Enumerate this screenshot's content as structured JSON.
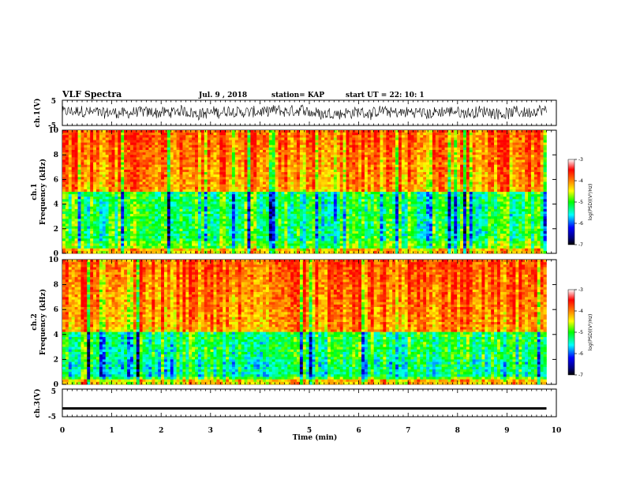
{
  "header": {
    "title": "VLF Spectra",
    "date": "Jul. 9 , 2018",
    "station": "station= KAP",
    "start": "start UT = 22: 10: 1"
  },
  "chart_data": [
    {
      "type": "line",
      "name": "ch1-waveform",
      "ylabel": "ch.1(V)",
      "ylim": [
        -5,
        5
      ],
      "yticks": [
        "5",
        "-5"
      ],
      "xlim": [
        0,
        10
      ],
      "note_series": "dense noisy voltage waveform roughly between -3 V and +4 V over 0–9.8 min"
    },
    {
      "type": "heatmap",
      "name": "ch1-spectrogram",
      "ylabel": "ch.1",
      "ylabel2": "Frequency (kHz)",
      "ylim": [
        0,
        10
      ],
      "yticks": [
        "0",
        "2",
        "4",
        "6",
        "8",
        "10"
      ],
      "xlim": [
        0,
        9.8
      ],
      "zlabel": "log(PSD)(V²/Hz)",
      "zlim": [
        -7,
        -3
      ],
      "zticks": [
        "-3",
        "-4",
        "-5",
        "-6",
        "-7"
      ]
    },
    {
      "type": "heatmap",
      "name": "ch2-spectrogram",
      "ylabel": "ch.2",
      "ylabel2": "Frequency (kHz)",
      "ylim": [
        0,
        10
      ],
      "yticks": [
        "0",
        "2",
        "4",
        "6",
        "8",
        "10"
      ],
      "xlim": [
        0,
        9.8
      ],
      "zlabel": "log(PSD)(V²/Hz)",
      "zlim": [
        -7,
        -3
      ],
      "zticks": [
        "-3",
        "-4",
        "-5",
        "-6",
        "-7"
      ]
    },
    {
      "type": "line",
      "name": "ch3-waveform",
      "ylabel": "ch.3(V)",
      "ylim": [
        -5,
        5
      ],
      "yticks": [
        "5",
        "-5"
      ],
      "xlim": [
        0,
        10
      ],
      "values_constant": -2
    }
  ],
  "xaxis": {
    "label": "Time (min)",
    "ticks": [
      "0",
      "1",
      "2",
      "3",
      "4",
      "5",
      "6",
      "7",
      "8",
      "9",
      "10"
    ],
    "range": [
      0,
      10
    ]
  },
  "colors": {
    "waveform": "#000000",
    "colormap": [
      "#000000",
      "#0000ff",
      "#00ffff",
      "#00ff00",
      "#ffff00",
      "#ff0000",
      "#ffffff"
    ]
  }
}
